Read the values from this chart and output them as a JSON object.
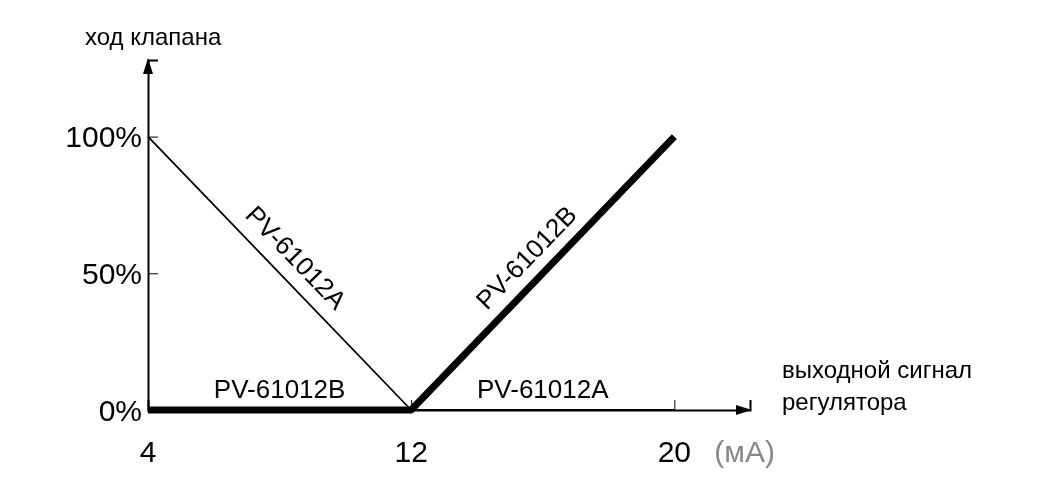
{
  "chart_data": {
    "type": "line",
    "xlabel": "выходной сигнал регулятора",
    "ylabel": "ход клапана",
    "x": [
      4,
      12,
      20
    ],
    "series": [
      {
        "name": "PV-61012A",
        "color": "#000000",
        "values": [
          100,
          0,
          0
        ]
      },
      {
        "name": "PV-61012B",
        "color": "#000000",
        "values": [
          0,
          0,
          100
        ]
      }
    ],
    "xlim": [
      4,
      22.3
    ],
    "xticks": [
      4,
      12,
      20
    ],
    "ylim": [
      0,
      128
    ],
    "yticks": [
      {
        "value": 0,
        "label": "0%"
      },
      {
        "value": 50,
        "label": "50%"
      },
      {
        "value": 100,
        "label": "100%"
      }
    ],
    "annotations": [
      "(мА)"
    ],
    "grid": false,
    "marker": "none",
    "line_style": "solid"
  }
}
